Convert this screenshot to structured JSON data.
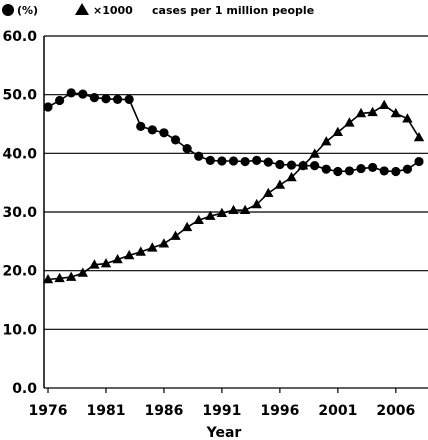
{
  "chart_data": {
    "type": "line",
    "title": "",
    "xlabel": "Year",
    "ylabel": "",
    "xlim": [
      1976,
      2009
    ],
    "ylim": [
      0,
      60
    ],
    "x_ticks": [
      "1976",
      "1981",
      "1986",
      "1991",
      "1996",
      "2001",
      "2006"
    ],
    "y_ticks": [
      "0.0",
      "10.0",
      "20.0",
      "30.0",
      "40.0",
      "50.0",
      "60.0"
    ],
    "grid": "horizontal",
    "legend_position": "top-left",
    "legend": {
      "circle_label": "(%)",
      "triangle_label": "×1000",
      "extra_label": "cases per 1 million people"
    },
    "x": [
      1976,
      1977,
      1978,
      1979,
      1980,
      1981,
      1982,
      1983,
      1984,
      1985,
      1986,
      1987,
      1988,
      1989,
      1990,
      1991,
      1992,
      1993,
      1994,
      1995,
      1996,
      1997,
      1998,
      1999,
      2000,
      2001,
      2002,
      2003,
      2004,
      2005,
      2006,
      2007,
      2008
    ],
    "series": [
      {
        "name": "(%)",
        "marker": "circle",
        "values": [
          47.9,
          49.0,
          50.3,
          50.1,
          49.5,
          49.3,
          49.2,
          49.2,
          44.6,
          44.0,
          43.5,
          42.3,
          40.8,
          39.5,
          38.8,
          38.7,
          38.7,
          38.6,
          38.8,
          38.5,
          38.1,
          38.0,
          37.9,
          37.9,
          37.3,
          36.9,
          37.0,
          37.4,
          37.6,
          37.0,
          36.9,
          37.3,
          38.6
        ]
      },
      {
        "name": "×1000",
        "marker": "triangle",
        "values": [
          18.5,
          18.7,
          18.9,
          19.6,
          21.0,
          21.2,
          21.9,
          22.6,
          23.2,
          23.9,
          24.6,
          25.9,
          27.4,
          28.6,
          29.3,
          29.8,
          30.3,
          30.3,
          31.3,
          33.2,
          34.6,
          35.9,
          37.9,
          39.9,
          42.0,
          43.6,
          45.2,
          46.8,
          47.0,
          48.2,
          46.8,
          45.9,
          42.7
        ]
      }
    ]
  }
}
